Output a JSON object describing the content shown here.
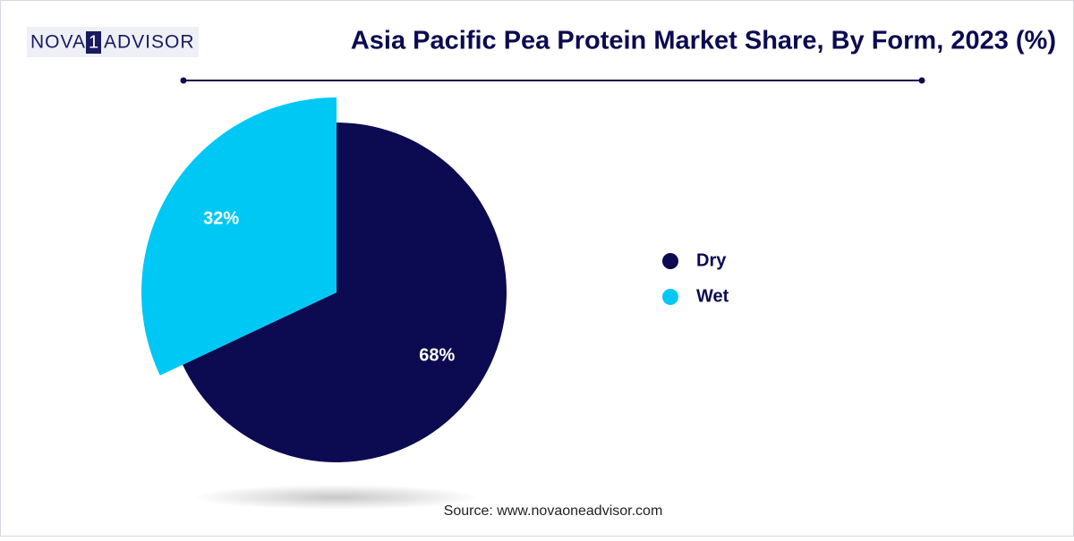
{
  "logo": {
    "left": "NOVA",
    "mark": "1",
    "right": "ADVISOR"
  },
  "chart_data": {
    "type": "pie",
    "title": "Asia Pacific Pea Protein Market Share, By Form, 2023 (%)",
    "categories": [
      "Dry",
      "Wet"
    ],
    "values": [
      68,
      32
    ],
    "value_labels": [
      "68%",
      "32%"
    ],
    "colors": [
      "#0c0a50",
      "#00c8f5"
    ],
    "legend": "right",
    "source": "Source: www.novaoneadvisor.com"
  }
}
